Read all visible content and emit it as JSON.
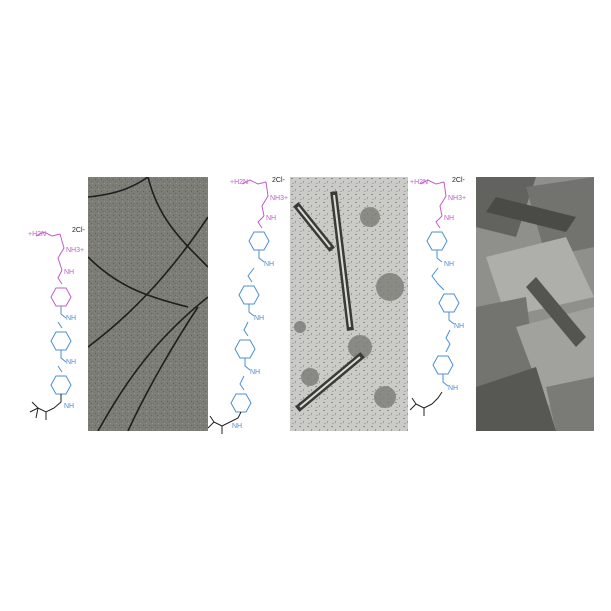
{
  "figure": {
    "colors": {
      "cationic": "#c25bc9",
      "aromatic": "#4a8fd4",
      "bond": "#222222",
      "micro_bg_1": "#7a7a74",
      "micro_bg_2": "#c9c9c5",
      "micro_bg_3": "#9d9d9a"
    },
    "panels": [
      {
        "id": "molecule-1",
        "labels": {
          "amine": "+H2N",
          "ammonium": "NH3+",
          "counterion": "2Cl-",
          "amide": "NH"
        },
        "morphology": "fibers"
      },
      {
        "id": "molecule-2",
        "labels": {
          "amine": "+H2N",
          "ammonium": "NH3+",
          "counterion": "2Cl-",
          "amide": "NH"
        },
        "morphology": "tubes"
      },
      {
        "id": "molecule-3",
        "labels": {
          "amine": "+H2N",
          "ammonium": "NH3+",
          "counterion": "2Cl-",
          "amide": "NH"
        },
        "morphology": "sheets"
      }
    ]
  }
}
